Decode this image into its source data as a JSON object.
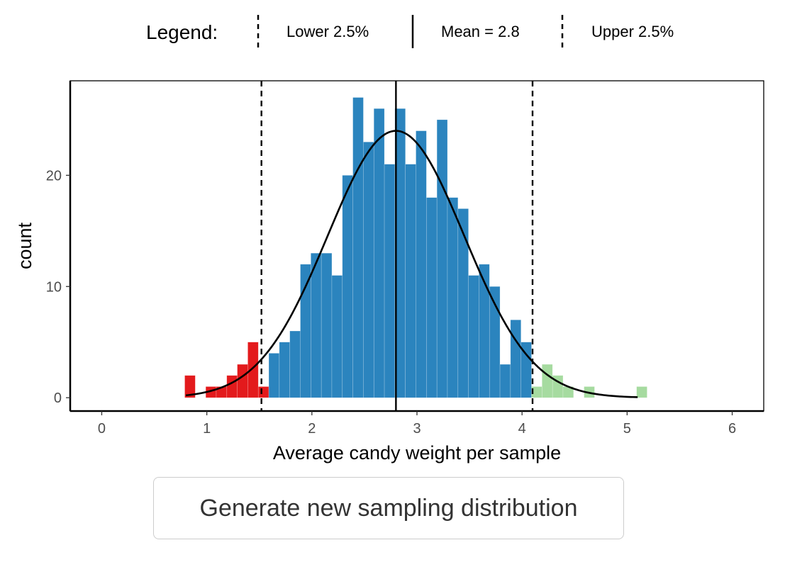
{
  "legend": {
    "title": "Legend:",
    "items": [
      {
        "label": "Lower 2.5%",
        "style": "dashed"
      },
      {
        "label": "Mean = 2.8",
        "style": "solid"
      },
      {
        "label": "Upper 2.5%",
        "style": "dashed"
      }
    ]
  },
  "button": {
    "label": "Generate new sampling distribution"
  },
  "chart_data": {
    "type": "bar",
    "xlabel": "Average candy weight per sample",
    "ylabel": "count",
    "xlim": [
      -0.3,
      6.3
    ],
    "ylim": [
      -1.2,
      28.5
    ],
    "x_ticks": [
      0,
      1,
      2,
      3,
      4,
      5,
      6
    ],
    "y_ticks": [
      0,
      10,
      20
    ],
    "bin_width": 0.1,
    "grid": false,
    "legend_position": "top",
    "colors": {
      "lower_tail": "#E31A1C",
      "middle": "#2B84BE",
      "upper_tail": "#A6DBA0"
    },
    "bins": [
      {
        "x": 0.79,
        "count": 2,
        "region": "lower"
      },
      {
        "x": 0.99,
        "count": 1,
        "region": "lower"
      },
      {
        "x": 1.09,
        "count": 1,
        "region": "lower"
      },
      {
        "x": 1.19,
        "count": 2,
        "region": "lower"
      },
      {
        "x": 1.29,
        "count": 3,
        "region": "lower"
      },
      {
        "x": 1.39,
        "count": 5,
        "region": "lower"
      },
      {
        "x": 1.49,
        "count": 1,
        "region": "lower"
      },
      {
        "x": 1.59,
        "count": 4,
        "region": "middle"
      },
      {
        "x": 1.69,
        "count": 5,
        "region": "middle"
      },
      {
        "x": 1.79,
        "count": 6,
        "region": "middle"
      },
      {
        "x": 1.89,
        "count": 12,
        "region": "middle"
      },
      {
        "x": 1.99,
        "count": 13,
        "region": "middle"
      },
      {
        "x": 2.09,
        "count": 13,
        "region": "middle"
      },
      {
        "x": 2.19,
        "count": 11,
        "region": "middle"
      },
      {
        "x": 2.29,
        "count": 20,
        "region": "middle"
      },
      {
        "x": 2.39,
        "count": 27,
        "region": "middle"
      },
      {
        "x": 2.49,
        "count": 23,
        "region": "middle"
      },
      {
        "x": 2.59,
        "count": 26,
        "region": "middle"
      },
      {
        "x": 2.69,
        "count": 21,
        "region": "middle"
      },
      {
        "x": 2.79,
        "count": 26,
        "region": "middle"
      },
      {
        "x": 2.89,
        "count": 21,
        "region": "middle"
      },
      {
        "x": 2.99,
        "count": 24,
        "region": "middle"
      },
      {
        "x": 3.09,
        "count": 18,
        "region": "middle"
      },
      {
        "x": 3.19,
        "count": 25,
        "region": "middle"
      },
      {
        "x": 3.29,
        "count": 18,
        "region": "middle"
      },
      {
        "x": 3.39,
        "count": 17,
        "region": "middle"
      },
      {
        "x": 3.49,
        "count": 11,
        "region": "middle"
      },
      {
        "x": 3.59,
        "count": 12,
        "region": "middle"
      },
      {
        "x": 3.69,
        "count": 10,
        "region": "middle"
      },
      {
        "x": 3.79,
        "count": 3,
        "region": "middle"
      },
      {
        "x": 3.89,
        "count": 7,
        "region": "middle"
      },
      {
        "x": 3.99,
        "count": 5,
        "region": "middle"
      },
      {
        "x": 4.09,
        "count": 1,
        "region": "upper"
      },
      {
        "x": 4.19,
        "count": 3,
        "region": "upper"
      },
      {
        "x": 4.29,
        "count": 2,
        "region": "upper"
      },
      {
        "x": 4.39,
        "count": 1,
        "region": "upper"
      },
      {
        "x": 4.59,
        "count": 1,
        "region": "upper"
      },
      {
        "x": 5.09,
        "count": 1,
        "region": "upper"
      }
    ],
    "vlines": [
      {
        "x": 1.52,
        "style": "dashed"
      },
      {
        "x": 2.8,
        "style": "solid"
      },
      {
        "x": 4.1,
        "style": "dashed"
      }
    ],
    "normal_curve": {
      "mean": 2.8,
      "sd": 0.65,
      "x_range": [
        0.8,
        5.1
      ],
      "peak_count": 24
    }
  }
}
